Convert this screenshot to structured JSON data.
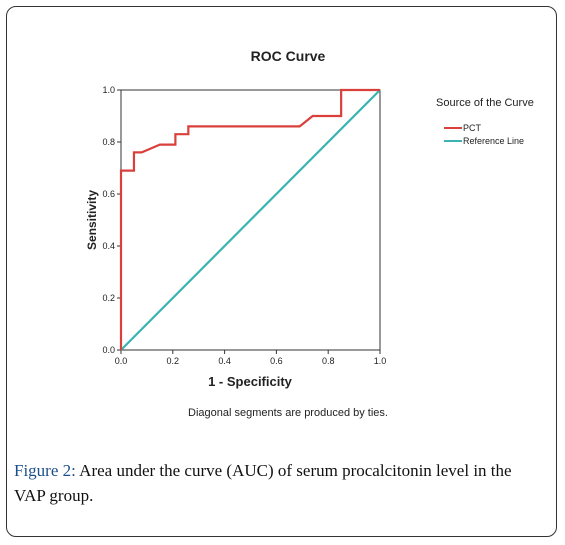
{
  "chart_data": {
    "type": "line",
    "title": "ROC Curve",
    "xlabel": "1 - Specificity",
    "ylabel": "Sensitivity",
    "xlim": [
      0.0,
      1.0
    ],
    "ylim": [
      0.0,
      1.0
    ],
    "xticks": [
      0.0,
      0.2,
      0.4,
      0.6,
      0.8,
      1.0
    ],
    "yticks": [
      0.0,
      0.2,
      0.4,
      0.6,
      0.8,
      1.0
    ],
    "xtick_labels": [
      "0.0",
      "0.2",
      "0.4",
      "0.6",
      "0.8",
      "1.0"
    ],
    "ytick_labels": [
      "0.0",
      "0.2",
      "0.4",
      "0.6",
      "0.8",
      "1.0"
    ],
    "grid": false,
    "legend_title": "Source of the Curve",
    "legend_position": "right",
    "footnote": "Diagonal segments are produced by ties.",
    "series": [
      {
        "name": "PCT",
        "color": "#d9403c",
        "x": [
          0.0,
          0.0,
          0.05,
          0.05,
          0.08,
          0.08,
          0.15,
          0.15,
          0.21,
          0.21,
          0.26,
          0.26,
          0.69,
          0.69,
          0.74,
          0.74,
          0.85,
          0.85,
          1.0
        ],
        "y": [
          0.0,
          0.69,
          0.69,
          0.76,
          0.76,
          0.76,
          0.79,
          0.79,
          0.79,
          0.83,
          0.83,
          0.86,
          0.86,
          0.86,
          0.9,
          0.9,
          0.9,
          1.0,
          1.0
        ]
      },
      {
        "name": "Reference Line",
        "color": "#3bb3b3",
        "x": [
          0.0,
          1.0
        ],
        "y": [
          0.0,
          1.0
        ]
      }
    ]
  },
  "caption": {
    "label": "Figure 2:",
    "text": " Area under the curve (AUC) of serum procalcitonin level in the VAP group."
  }
}
